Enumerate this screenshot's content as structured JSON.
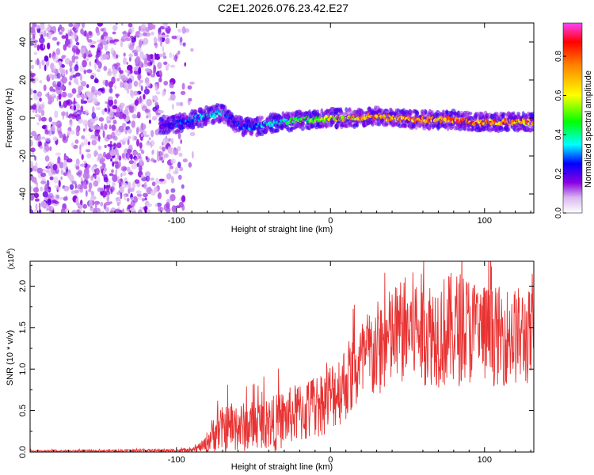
{
  "figure_title": "C2E1.2026.076.23.42.E27",
  "colorbar": {
    "label": "Normalized spectral amplitude",
    "ticks": [
      "0.0",
      "0.2",
      "0.4",
      "0.6",
      "0.8"
    ],
    "tick_values": [
      0.0,
      0.2,
      0.4,
      0.6,
      0.8
    ],
    "range": [
      0.0,
      0.97
    ]
  },
  "chart_data": [
    {
      "type": "heatmap",
      "name": "spectrogram",
      "title": "",
      "xlabel": "Height of straight line (km)",
      "ylabel": "Frequency (Hz)",
      "xlim": [
        -195,
        132
      ],
      "ylim": [
        -50,
        50
      ],
      "x_ticks": [
        -100,
        0,
        100
      ],
      "x_tick_labels": [
        "-100",
        "0",
        "100"
      ],
      "y_ticks": [
        -40,
        -20,
        0,
        20,
        40
      ],
      "y_tick_labels": [
        "-40",
        "-20",
        "0",
        "20",
        "40"
      ],
      "noise_region_km": [
        -195,
        -87
      ],
      "signal_start_km": -110,
      "ridge": {
        "x_km": [
          -110,
          -100,
          -90,
          -80,
          -70,
          -65,
          -60,
          -50,
          -40,
          -30,
          -20,
          -10,
          0,
          10,
          20,
          30,
          40,
          50,
          60,
          70,
          80,
          90,
          100,
          110,
          120,
          132
        ],
        "freq_hz": [
          -4,
          -3,
          -1,
          1,
          3,
          0,
          -4,
          -5,
          -3,
          -2,
          -1,
          -1,
          0,
          0,
          0,
          1,
          0,
          -1,
          -1,
          -1,
          -1,
          -2,
          -2,
          -2,
          -2,
          -2
        ],
        "amplitude": [
          0.2,
          0.3,
          0.35,
          0.4,
          0.4,
          0.3,
          0.3,
          0.35,
          0.4,
          0.45,
          0.55,
          0.6,
          0.7,
          0.75,
          0.8,
          0.8,
          0.8,
          0.85,
          0.85,
          0.85,
          0.9,
          0.9,
          0.85,
          0.85,
          0.8,
          0.8
        ]
      }
    },
    {
      "type": "line",
      "name": "snr",
      "title": "",
      "xlabel": "Height of straight line (km)",
      "ylabel": "SNR (10 * v/v)",
      "scale_label": "(x10",
      "scale_exponent": "4",
      "scale_close": ")",
      "xlim": [
        -195,
        132
      ],
      "ylim": [
        0.0,
        2.3
      ],
      "x_ticks": [
        -100,
        0,
        100
      ],
      "x_tick_labels": [
        "-100",
        "0",
        "100"
      ],
      "y_ticks": [
        0.0,
        0.5,
        1.0,
        1.5,
        2.0
      ],
      "y_tick_labels": [
        "0.0",
        "0.5",
        "1.0",
        "1.5",
        "2.0"
      ],
      "color": "#e83232",
      "envelope_x_km": [
        -195,
        -90,
        -82,
        -75,
        -65,
        -55,
        -45,
        -35,
        -25,
        -15,
        -5,
        5,
        15,
        25,
        35,
        45,
        55,
        65,
        75,
        85,
        95,
        105,
        115,
        125,
        132
      ],
      "envelope_mean": [
        0.01,
        0.02,
        0.08,
        0.25,
        0.3,
        0.3,
        0.35,
        0.35,
        0.45,
        0.5,
        0.6,
        0.75,
        0.95,
        1.15,
        1.3,
        1.45,
        1.5,
        1.45,
        1.45,
        1.5,
        1.45,
        1.4,
        1.4,
        1.4,
        1.35
      ],
      "envelope_spread": [
        0.01,
        0.02,
        0.08,
        0.25,
        0.3,
        0.3,
        0.3,
        0.35,
        0.35,
        0.4,
        0.4,
        0.45,
        0.5,
        0.6,
        0.6,
        0.65,
        0.7,
        0.65,
        0.7,
        0.7,
        0.65,
        0.6,
        0.6,
        0.6,
        0.6
      ]
    }
  ]
}
